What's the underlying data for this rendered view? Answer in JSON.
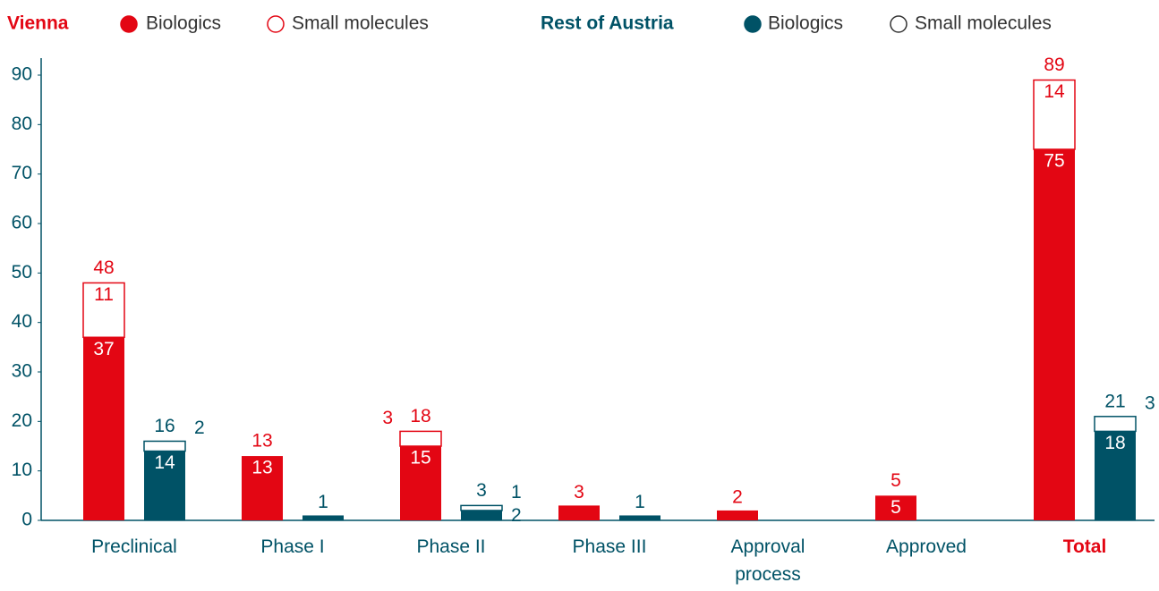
{
  "chart_data": {
    "type": "grouped-stacked-bar",
    "categories": [
      "Preclinical",
      "Phase I",
      "Phase II",
      "Phase III",
      "Approval process",
      "Approved",
      "Total"
    ],
    "groups": [
      {
        "name": "Vienna",
        "color": "#e30613",
        "series": [
          {
            "name": "Biologics",
            "filled": true,
            "values": [
              37,
              13,
              15,
              3,
              2,
              5,
              75
            ]
          },
          {
            "name": "Small molecules",
            "filled": false,
            "values": [
              11,
              null,
              3,
              null,
              null,
              null,
              14
            ]
          }
        ],
        "totals": [
          48,
          13,
          18,
          null,
          null,
          5,
          89
        ]
      },
      {
        "name": "Rest of Austria",
        "color": "#005266",
        "series": [
          {
            "name": "Biologics",
            "filled": true,
            "values": [
              14,
              1,
              2,
              1,
              null,
              null,
              18
            ]
          },
          {
            "name": "Small molecules",
            "filled": false,
            "values": [
              2,
              null,
              1,
              null,
              null,
              null,
              3
            ]
          }
        ],
        "totals": [
          16,
          null,
          3,
          null,
          null,
          null,
          21
        ]
      }
    ],
    "ylim": [
      0,
      90
    ],
    "yticks": [
      0,
      10,
      20,
      30,
      40,
      50,
      60,
      70,
      80,
      90
    ],
    "axis_color": "#005266"
  }
}
